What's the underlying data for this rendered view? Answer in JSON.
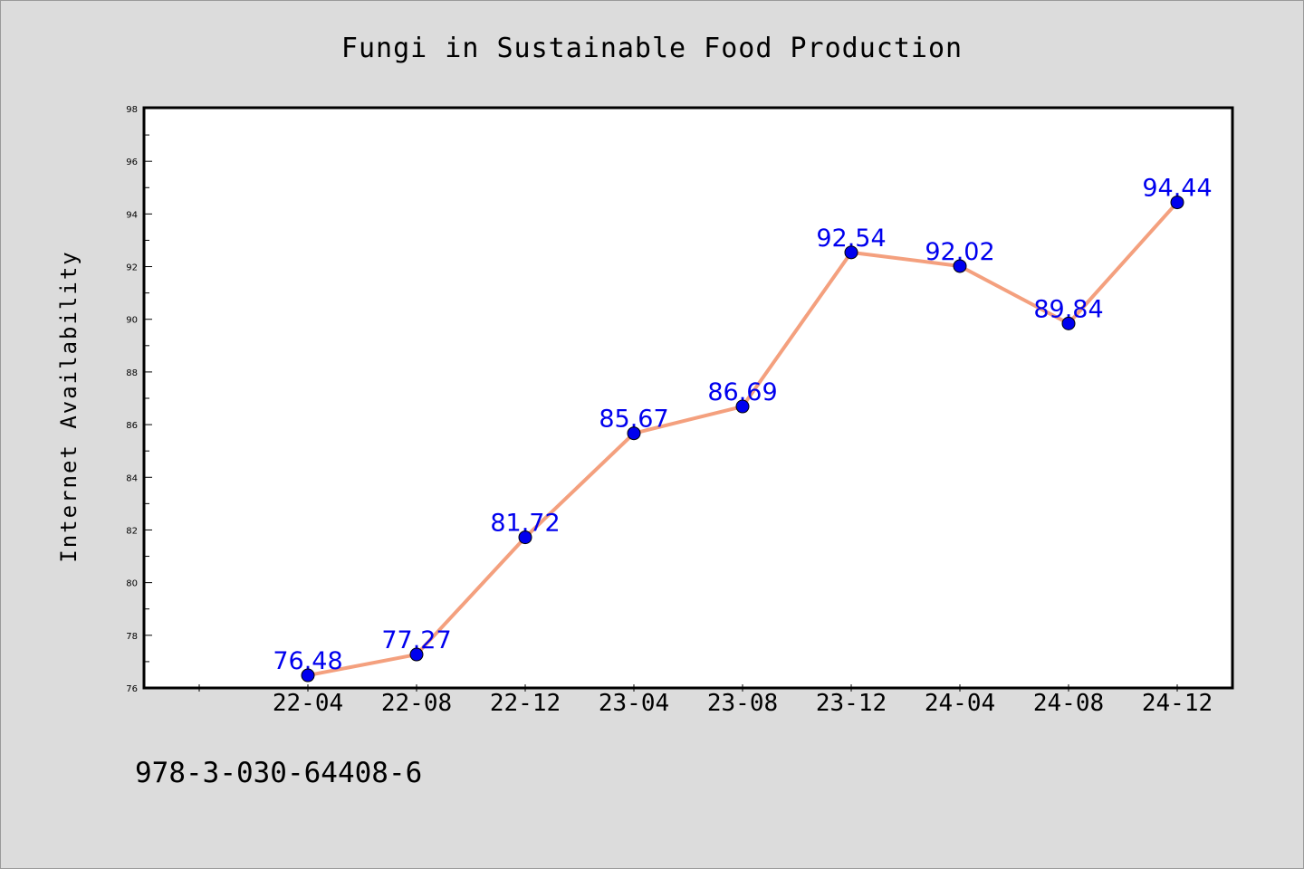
{
  "chart_data": {
    "type": "line",
    "title": "Fungi in Sustainable Food Production",
    "xlabel": "",
    "ylabel": "Internet Availability",
    "categories": [
      "22-04",
      "22-08",
      "22-12",
      "23-04",
      "23-08",
      "23-12",
      "24-04",
      "24-08",
      "24-12"
    ],
    "series": [
      {
        "values": [
          76.48,
          77.27,
          81.72,
          85.67,
          86.69,
          92.54,
          92.02,
          89.84,
          94.44
        ]
      }
    ],
    "value_labels": [
      "76.48",
      "77.27",
      "81.72",
      "85.67",
      "86.69",
      "92.54",
      "92.02",
      "89.84",
      "94.44"
    ],
    "ylim": [
      76,
      98
    ],
    "yticks": [
      "76",
      "78",
      "80",
      "82",
      "84",
      "86",
      "88",
      "90",
      "92",
      "94",
      "96",
      "98"
    ],
    "grid": false,
    "legend": "none",
    "colors": {
      "background": "#dcdcdc",
      "plot_background": "#ffffff",
      "line": "#f4a07e",
      "marker": "#0000ee",
      "label": "#0000ee"
    }
  },
  "footer_text": "978-3-030-64408-6"
}
